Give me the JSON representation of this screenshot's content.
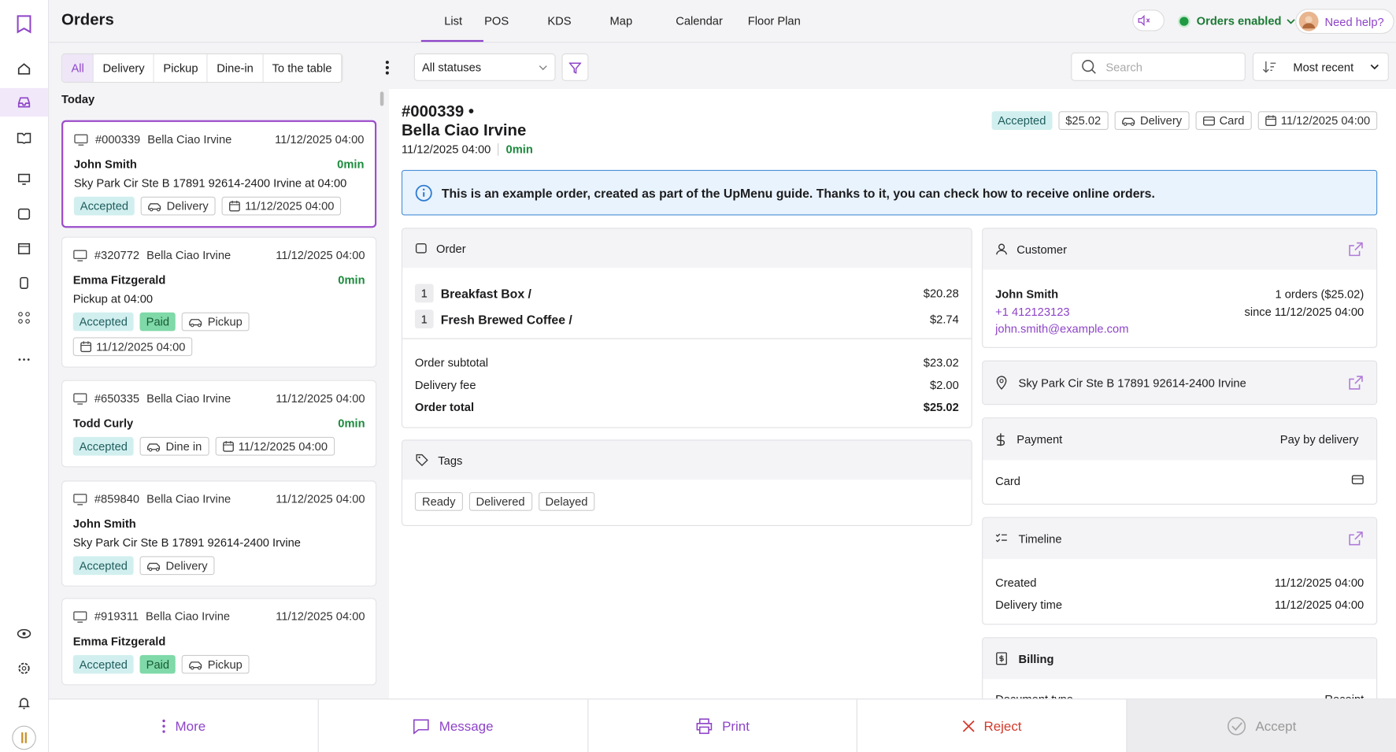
{
  "header": {
    "title": "Orders",
    "tabs": [
      "List",
      "POS",
      "KDS",
      "Map",
      "Calendar",
      "Floor Plan"
    ],
    "orders_status": "Orders enabled",
    "help": "Need help?"
  },
  "filters": {
    "types": [
      "All",
      "Delivery",
      "Pickup",
      "Dine-in",
      "To the table"
    ],
    "status": "All statuses",
    "search_placeholder": "Search",
    "sort": "Most recent"
  },
  "order_list": {
    "group": "Today",
    "orders": [
      {
        "number": "#000339",
        "restaurant": "Bella Ciao Irvine",
        "date": "11/12/2025 04:00",
        "customer": "John Smith",
        "wait": "0min",
        "address": "Sky Park Cir Ste B 17891 92614-2400 Irvine at 04:00",
        "status": "Accepted",
        "method": "Delivery",
        "scheduled": "11/12/2025 04:00"
      },
      {
        "number": "#320772",
        "restaurant": "Bella Ciao Irvine",
        "date": "11/12/2025 04:00",
        "customer": "Emma Fitzgerald",
        "wait": "0min",
        "address": "Pickup at 04:00",
        "status": "Accepted",
        "payment": "Paid",
        "method": "Pickup",
        "scheduled": "11/12/2025 04:00"
      },
      {
        "number": "#650335",
        "restaurant": "Bella Ciao Irvine",
        "date": "11/12/2025 04:00",
        "customer": "Todd Curly",
        "wait": "0min",
        "status": "Accepted",
        "method": "Dine in",
        "scheduled": "11/12/2025 04:00"
      },
      {
        "number": "#859840",
        "restaurant": "Bella Ciao Irvine",
        "date": "11/12/2025 04:00",
        "customer": "John Smith",
        "address": "Sky Park Cir Ste B 17891 92614-2400 Irvine",
        "status": "Accepted",
        "method": "Delivery"
      },
      {
        "number": "#919311",
        "restaurant": "Bella Ciao Irvine",
        "date": "11/12/2025 04:00",
        "customer": "Emma Fitzgerald",
        "status": "Accepted",
        "payment": "Paid",
        "method": "Pickup"
      }
    ]
  },
  "detail": {
    "number": "#000339 •",
    "restaurant": "Bella Ciao Irvine",
    "date": "11/12/2025 04:00",
    "wait": "0min",
    "badges": [
      "Accepted",
      "$25.02",
      "Delivery",
      "Card",
      "11/12/2025 04:00"
    ],
    "notice": "This is an example order, created as part of the UpMenu guide. Thanks to it, you can check how to receive online orders.",
    "order": {
      "title": "Order",
      "items": [
        {
          "qty": 1,
          "name": "Breakfast Box /",
          "price": "$20.28"
        },
        {
          "qty": 1,
          "name": "Fresh Brewed Coffee /",
          "price": "$2.74"
        }
      ],
      "totals": [
        {
          "label": "Order subtotal",
          "value": "$23.02"
        },
        {
          "label": "Delivery fee",
          "value": "$2.00"
        },
        {
          "label": "Order total",
          "value": "$25.02"
        }
      ]
    },
    "tags": {
      "title": "Tags",
      "items": [
        "Ready",
        "Delivered",
        "Delayed"
      ]
    },
    "customer": {
      "title": "Customer",
      "name": "John Smith",
      "phone": "+1 412123123",
      "email": "john.smith@example.com",
      "orders": "1 orders ($25.02)",
      "since": "since 11/12/2025 04:00"
    },
    "address": "Sky Park Cir Ste B 17891 92614-2400 Irvine",
    "payment": {
      "title": "Payment",
      "mode": "Pay by delivery",
      "method": "Card"
    },
    "timeline": {
      "title": "Timeline",
      "rows": [
        {
          "label": "Created",
          "value": "11/12/2025 04:00"
        },
        {
          "label": "Delivery time",
          "value": "11/12/2025 04:00"
        }
      ]
    },
    "billing": {
      "title": "Billing",
      "label": "Document type",
      "value": "Receipt"
    }
  },
  "actions": [
    "More",
    "Message",
    "Print",
    "Reject",
    "Accept"
  ]
}
